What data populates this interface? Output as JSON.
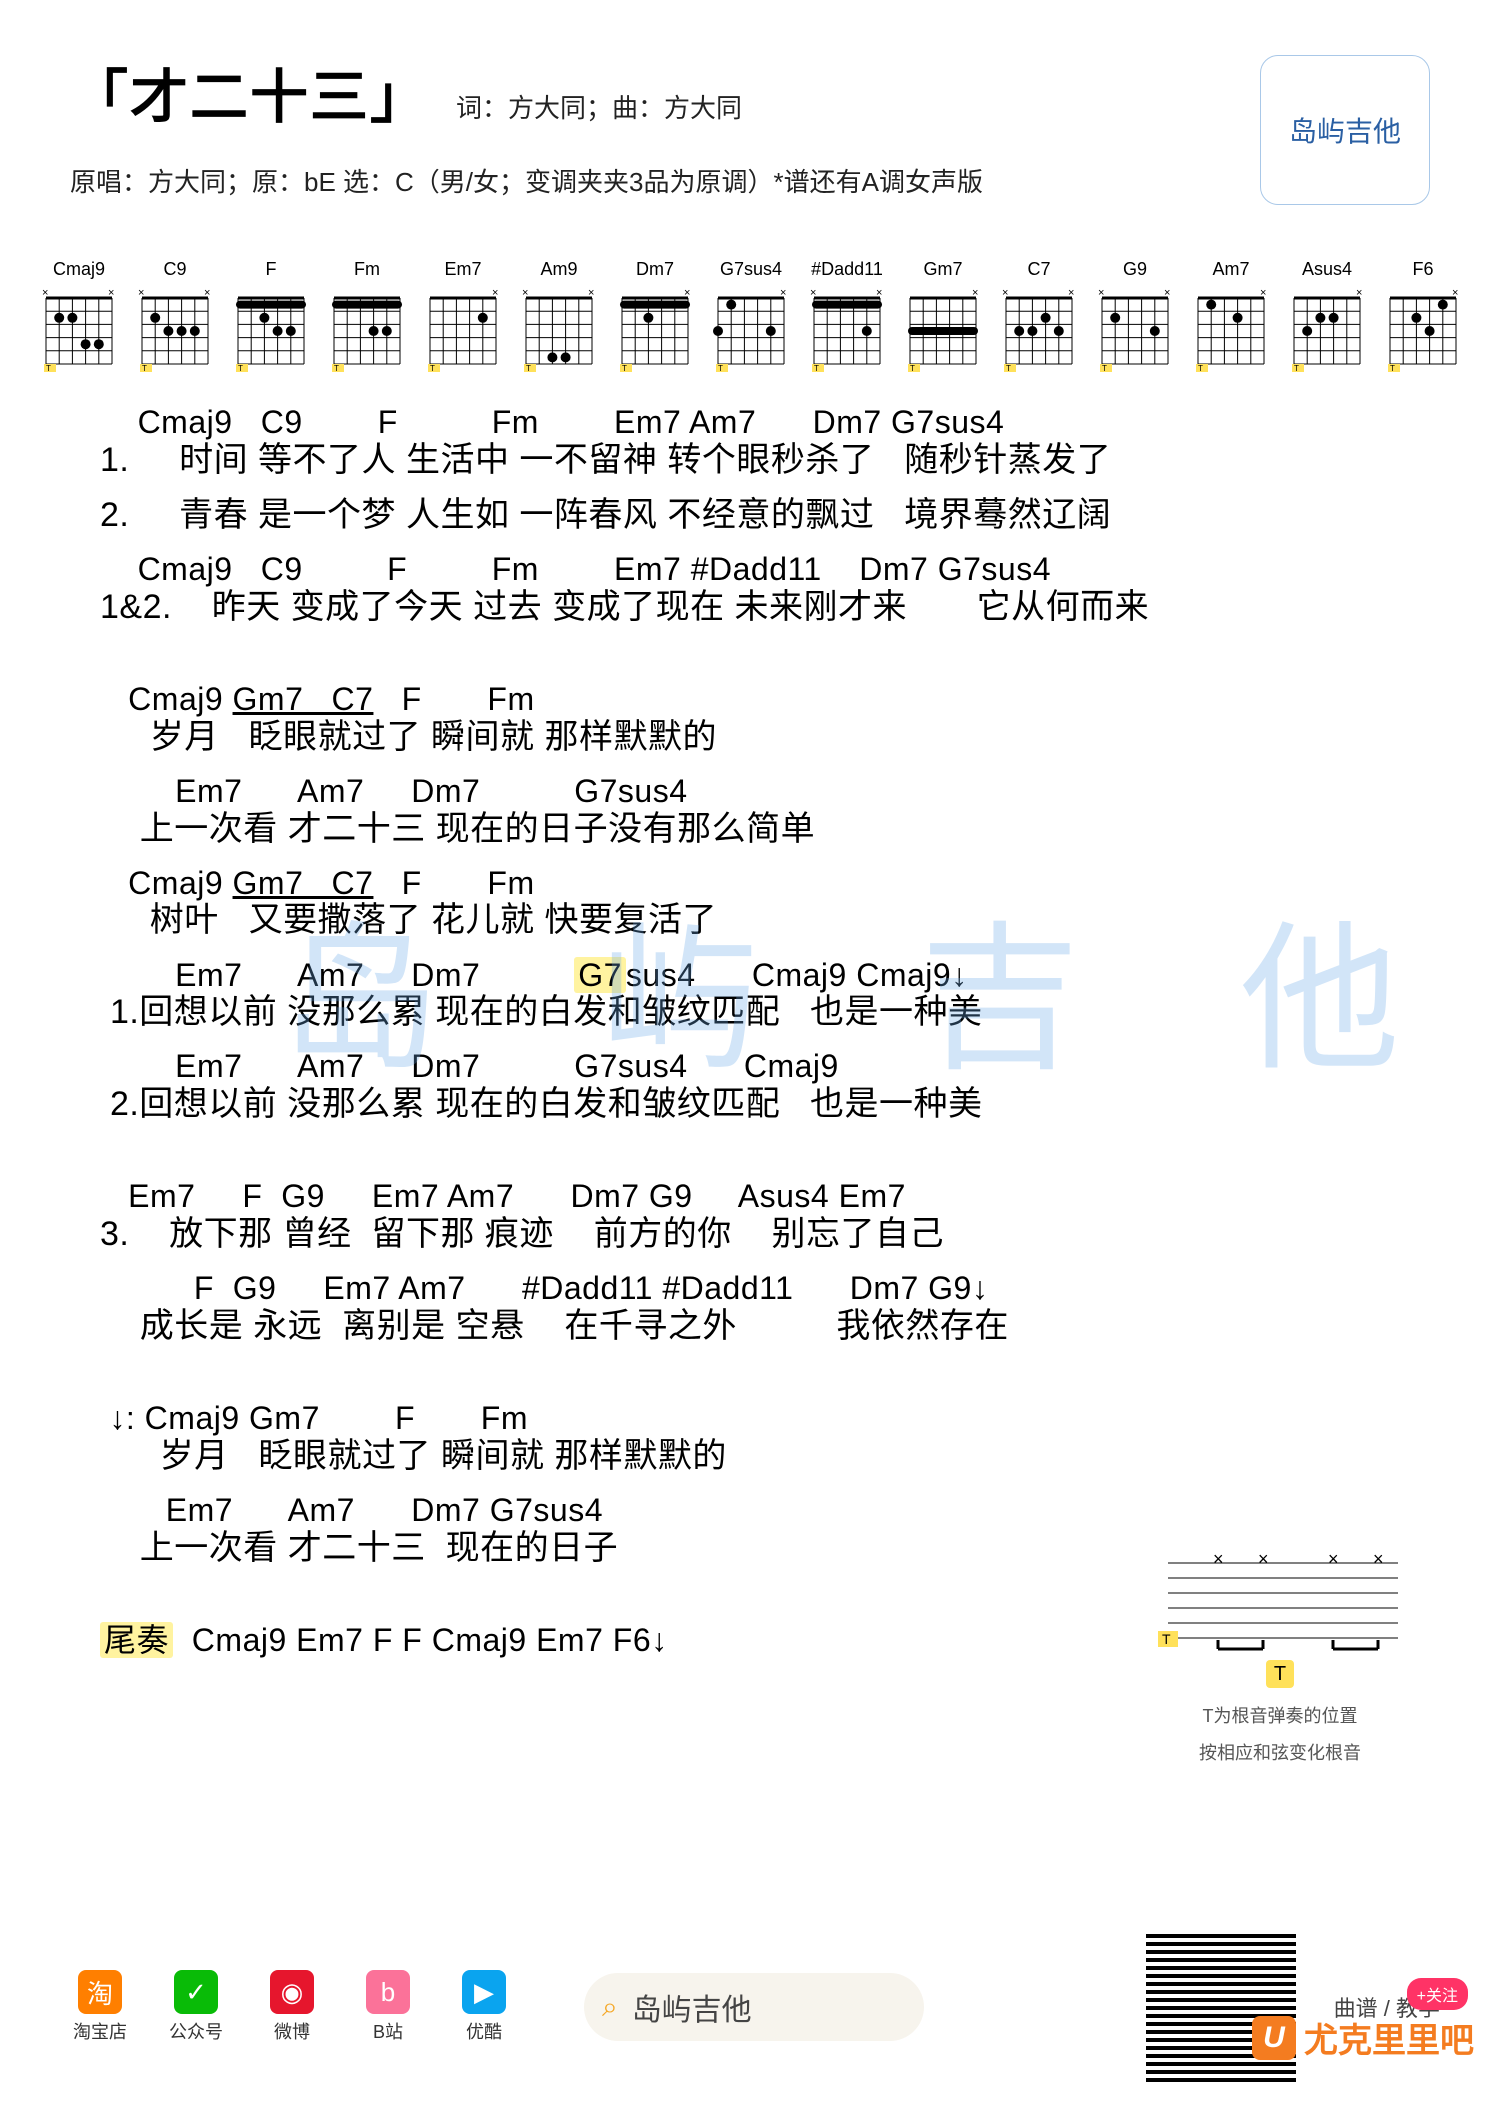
{
  "header": {
    "title": "「才二十三」",
    "credits": "词：方大同；曲：方大同",
    "sub": "原唱：方大同；原：bE  选：C（男/女；变调夹夹3品为原调）*谱还有A调女声版"
  },
  "logo": {
    "text": "岛屿吉他"
  },
  "chords": [
    {
      "name": "Cmaj9",
      "muted": [
        1,
        6
      ],
      "dots": [
        [
          2,
          2
        ],
        [
          2,
          3
        ],
        [
          4,
          4
        ],
        [
          4,
          5
        ]
      ]
    },
    {
      "name": "C9",
      "muted": [
        1,
        6
      ],
      "dots": [
        [
          2,
          2
        ],
        [
          3,
          3
        ],
        [
          3,
          4
        ],
        [
          3,
          5
        ]
      ]
    },
    {
      "name": "F",
      "muted": [],
      "barre": 1,
      "dots": [
        [
          2,
          3
        ],
        [
          3,
          4
        ],
        [
          3,
          5
        ]
      ]
    },
    {
      "name": "Fm",
      "muted": [],
      "barre": 1,
      "dots": [
        [
          3,
          4
        ],
        [
          3,
          5
        ]
      ]
    },
    {
      "name": "Em7",
      "muted": [
        6
      ],
      "dots": [
        [
          2,
          5
        ]
      ]
    },
    {
      "name": "Am9",
      "muted": [
        1,
        6
      ],
      "dots": [
        [
          5,
          3
        ],
        [
          5,
          4
        ],
        [
          7,
          5
        ]
      ]
    },
    {
      "name": "Dm7",
      "muted": [
        6
      ],
      "barre": 1,
      "dots": [
        [
          2,
          3
        ]
      ]
    },
    {
      "name": "G7sus4",
      "muted": [
        6
      ],
      "dots": [
        [
          1,
          2
        ],
        [
          3,
          5
        ],
        [
          3,
          1
        ]
      ]
    },
    {
      "name": "#Dadd11",
      "muted": [
        1,
        6
      ],
      "barre": 1,
      "dots": [
        [
          3,
          5
        ]
      ]
    },
    {
      "name": "Gm7",
      "muted": [
        6
      ],
      "barre": 3,
      "dots": []
    },
    {
      "name": "C7",
      "muted": [
        1,
        6
      ],
      "dots": [
        [
          2,
          4
        ],
        [
          3,
          5
        ],
        [
          3,
          2
        ],
        [
          3,
          3
        ]
      ]
    },
    {
      "name": "G9",
      "muted": [
        1,
        6
      ],
      "dots": [
        [
          2,
          2
        ],
        [
          3,
          5
        ]
      ]
    },
    {
      "name": "Am7",
      "muted": [
        6
      ],
      "dots": [
        [
          1,
          2
        ],
        [
          2,
          4
        ]
      ]
    },
    {
      "name": "Asus4",
      "muted": [
        6
      ],
      "dots": [
        [
          2,
          3
        ],
        [
          2,
          4
        ],
        [
          3,
          2
        ]
      ]
    },
    {
      "name": "F6",
      "muted": [
        6
      ],
      "dots": [
        [
          1,
          5
        ],
        [
          2,
          3
        ],
        [
          3,
          4
        ]
      ]
    }
  ],
  "body": {
    "lines": [
      {
        "c": "    Cmaj9   C9        F          Fm        Em7 Am7      Dm7 G7sus4",
        "l": "1.     时间 等不了人 生活中 一不留神 转个眼秒杀了   随秒针蒸发了"
      },
      {
        "c": "",
        "l": "2.     青春 是一个梦 人生如 一阵春风 不经意的飘过   境界蓦然辽阔"
      },
      {
        "c": "    Cmaj9   C9         F         Fm        Em7 #Dadd11    Dm7 G7sus4",
        "l": "1&2.    昨天 变成了今天 过去 变成了现在 未来刚才来       它从何而来"
      },
      {
        "gap": true
      },
      {
        "c": "   Cmaj9 <u>Gm7   C7</u>   F       Fm",
        "l": "     岁月   眨眼就过了 瞬间就 那样默默的"
      },
      {
        "c": "        Em7      Am7     Dm7          G7sus4",
        "l": "    上一次看 才二十三 现在的日子没有那么简单"
      },
      {
        "c": "   Cmaj9 <u>Gm7   C7</u>   F       Fm",
        "l": "     树叶   又要撒落了 花儿就 快要复活了"
      },
      {
        "c": "        Em7      Am7     Dm7          <hl>G7</hl>sus4      Cmaj9 Cmaj9↓",
        "l": " 1.回想以前 没那么累 现在的白发和皱纹匹配   也是一种美"
      },
      {
        "c": "        Em7      Am7     Dm7          G7sus4      Cmaj9",
        "l": " 2.回想以前 没那么累 现在的白发和皱纹匹配   也是一种美"
      },
      {
        "gap": true
      },
      {
        "c": "   Em7     F  G9     Em7 Am7      Dm7 G9     Asus4 Em7",
        "l": "3.    放下那 曾经  留下那 痕迹    前方的你    别忘了自己"
      },
      {
        "c": "          F  G9     Em7 Am7      #Dadd11 #Dadd11      Dm7 G9↓",
        "l": "    成长是 永远  离别是 空悬    在千寻之外          我依然存在"
      },
      {
        "gap": true
      },
      {
        "c": " ↓: Cmaj9 Gm7        F       Fm",
        "l": "      岁月   眨眼就过了 瞬间就 那样默默的"
      },
      {
        "c": "       Em7      Am7      Dm7 G7sus4",
        "l": "    上一次看 才二十三  现在的日子"
      },
      {
        "gap": true
      },
      {
        "c": "<hl>尾奏</hl>  Cmaj9 Em7 F F Cmaj9 Em7 F6↓",
        "l": ""
      }
    ]
  },
  "rhythm": {
    "t_label": "T",
    "tip1": "T为根音弹奏的位置",
    "tip2": "按相应和弦变化根音"
  },
  "footer": {
    "icons": [
      {
        "bg": "#ff7f00",
        "glyph": "淘",
        "label": "淘宝店"
      },
      {
        "bg": "#09bb07",
        "glyph": "✓",
        "label": "公众号"
      },
      {
        "bg": "#e6162d",
        "glyph": "◉",
        "label": "微博"
      },
      {
        "bg": "#fb7299",
        "glyph": "b",
        "label": "B站"
      },
      {
        "bg": "#0aa4ef",
        "glyph": "▶",
        "label": "优酷"
      }
    ],
    "search_text": "岛屿吉他",
    "right_text": "曲谱 / 教学",
    "uke": "尤克里里吧",
    "follow": "+关注"
  },
  "watermark": "岛 屿 吉 他"
}
